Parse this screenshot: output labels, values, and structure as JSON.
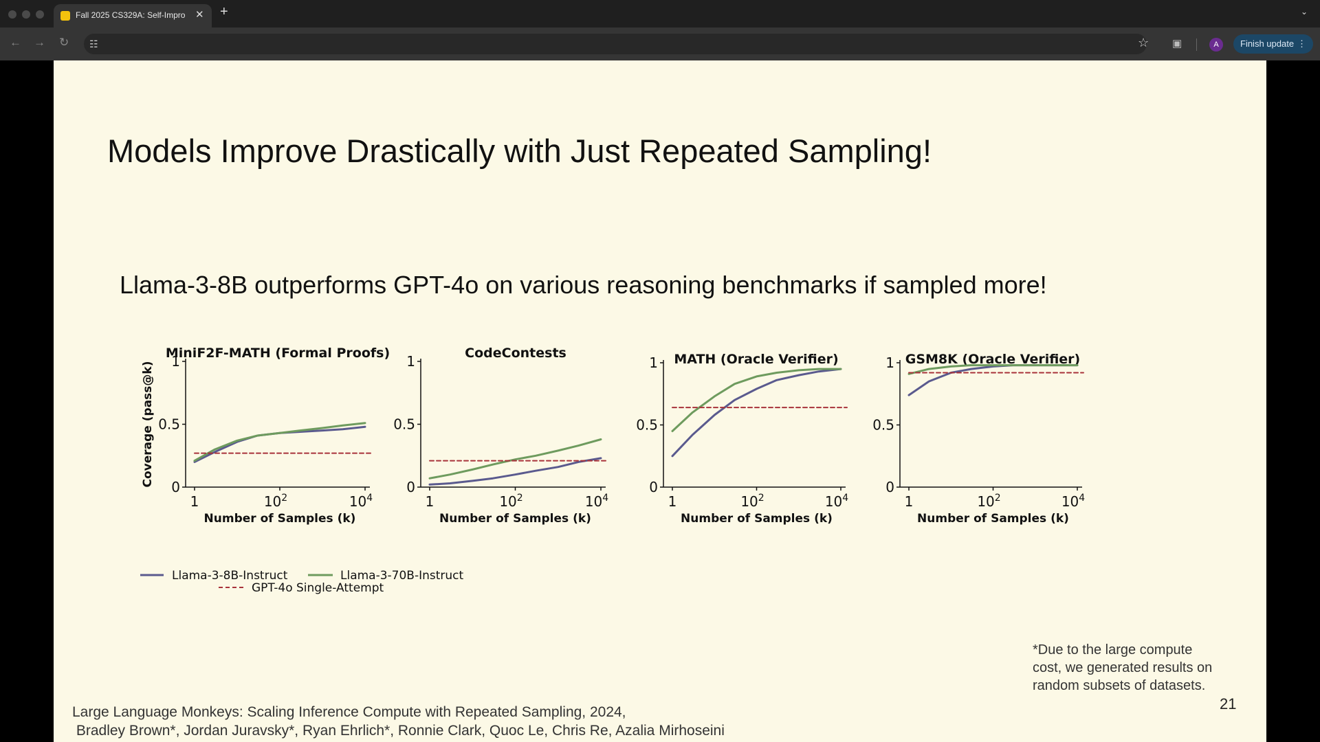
{
  "browser": {
    "tab_title": "Fall 2025 CS329A: Self-Impro",
    "tab_close": "✕",
    "new_tab": "+",
    "tab_menu": "⌄",
    "avatar_letter": "A",
    "update_label": "Finish update",
    "update_dots": "⋮",
    "icons": [
      "back-icon",
      "forward-icon",
      "reload-icon",
      "tune-icon",
      "star-icon",
      "extensions-icon"
    ]
  },
  "slide": {
    "title": "Models Improve Drastically with Just Repeated Sampling!",
    "subtitle": "Llama-3-8B outperforms GPT-4o on various reasoning benchmarks if sampled more!",
    "footnote": [
      "*Due to the large compute",
      "cost, we generated results on",
      "random subsets of datasets."
    ],
    "page_number": "21",
    "citation": [
      "Large Language Monkeys: Scaling Inference Compute with Repeated Sampling, 2024,",
      " Bradley Brown*, Jordan Juravsky*, Ryan Ehrlich*, Ronnie Clark, Quoc Le, Chris Re, Azalia Mirhoseini"
    ]
  },
  "legend": {
    "items": [
      {
        "label": "Llama-3-8B-Instruct",
        "color": "#5a5a8e",
        "style": "solid"
      },
      {
        "label": "Llama-3-70B-Instruct",
        "color": "#6e9b5e",
        "style": "solid"
      },
      {
        "label": "GPT-4o Single-Attempt",
        "color": "#a8323a",
        "style": "dashed"
      }
    ]
  },
  "chart_data": [
    {
      "type": "line",
      "title": "MiniF2F-MATH (Formal Proofs)",
      "xlabel": "Number of Samples (k)",
      "ylabel": "Coverage (pass@k)",
      "xscale": "log10",
      "x_ticks": [
        1,
        100,
        10000
      ],
      "y_ticks": [
        "0",
        "0.5",
        "1"
      ],
      "ylim": [
        0,
        1
      ],
      "series": [
        {
          "name": "Llama-3-8B-Instruct",
          "x": [
            1,
            3,
            10,
            30,
            100,
            300,
            1000,
            3000,
            10000
          ],
          "y": [
            0.2,
            0.28,
            0.36,
            0.41,
            0.43,
            0.44,
            0.45,
            0.46,
            0.48
          ]
        },
        {
          "name": "Llama-3-70B-Instruct",
          "x": [
            1,
            3,
            10,
            30,
            100,
            300,
            1000,
            3000,
            10000
          ],
          "y": [
            0.21,
            0.3,
            0.37,
            0.41,
            0.43,
            0.45,
            0.47,
            0.49,
            0.51
          ]
        },
        {
          "name": "GPT-4o Single-Attempt",
          "x": [
            1,
            10000
          ],
          "y": [
            0.27,
            0.27
          ]
        }
      ]
    },
    {
      "type": "line",
      "title": "CodeContests",
      "xlabel": "Number of Samples (k)",
      "ylabel": "",
      "xscale": "log10",
      "x_ticks": [
        1,
        100,
        10000
      ],
      "y_ticks": [
        "0",
        "0.5",
        "1"
      ],
      "ylim": [
        0,
        1
      ],
      "series": [
        {
          "name": "Llama-3-8B-Instruct",
          "x": [
            1,
            3,
            10,
            30,
            100,
            300,
            1000,
            3000,
            10000
          ],
          "y": [
            0.02,
            0.03,
            0.05,
            0.07,
            0.1,
            0.13,
            0.16,
            0.2,
            0.23
          ]
        },
        {
          "name": "Llama-3-70B-Instruct",
          "x": [
            1,
            3,
            10,
            30,
            100,
            300,
            1000,
            3000,
            10000
          ],
          "y": [
            0.07,
            0.1,
            0.14,
            0.18,
            0.22,
            0.25,
            0.29,
            0.33,
            0.38
          ]
        },
        {
          "name": "GPT-4o Single-Attempt",
          "x": [
            1,
            10000
          ],
          "y": [
            0.21,
            0.21
          ]
        }
      ]
    },
    {
      "type": "line",
      "title": "MATH (Oracle Verifier)",
      "xlabel": "Number of Samples (k)",
      "ylabel": "",
      "xscale": "log10",
      "x_ticks": [
        1,
        100,
        10000
      ],
      "y_ticks": [
        "0",
        "0.5",
        "1"
      ],
      "ylim": [
        0,
        1
      ],
      "series": [
        {
          "name": "Llama-3-8B-Instruct",
          "x": [
            1,
            3,
            10,
            30,
            100,
            300,
            1000,
            3000,
            10000
          ],
          "y": [
            0.25,
            0.42,
            0.58,
            0.7,
            0.79,
            0.86,
            0.9,
            0.93,
            0.95
          ]
        },
        {
          "name": "Llama-3-70B-Instruct",
          "x": [
            1,
            3,
            10,
            30,
            100,
            300,
            1000,
            3000,
            10000
          ],
          "y": [
            0.45,
            0.6,
            0.73,
            0.83,
            0.89,
            0.92,
            0.94,
            0.95,
            0.95
          ]
        },
        {
          "name": "GPT-4o Single-Attempt",
          "x": [
            1,
            10000
          ],
          "y": [
            0.64,
            0.64
          ]
        }
      ]
    },
    {
      "type": "line",
      "title": "GSM8K (Oracle Verifier)",
      "xlabel": "Number of Samples (k)",
      "ylabel": "",
      "xscale": "log10",
      "x_ticks": [
        1,
        100,
        10000
      ],
      "y_ticks": [
        "0",
        "0.5",
        "1"
      ],
      "ylim": [
        0,
        1
      ],
      "series": [
        {
          "name": "Llama-3-8B-Instruct",
          "x": [
            1,
            3,
            10,
            30,
            100,
            300,
            1000,
            3000,
            10000
          ],
          "y": [
            0.74,
            0.85,
            0.92,
            0.95,
            0.97,
            0.98,
            0.98,
            0.98,
            0.98
          ]
        },
        {
          "name": "Llama-3-70B-Instruct",
          "x": [
            1,
            3,
            10,
            30,
            100,
            300,
            1000,
            3000,
            10000
          ],
          "y": [
            0.91,
            0.95,
            0.97,
            0.98,
            0.98,
            0.98,
            0.98,
            0.98,
            0.98
          ]
        },
        {
          "name": "GPT-4o Single-Attempt",
          "x": [
            1,
            10000
          ],
          "y": [
            0.92,
            0.92
          ]
        }
      ]
    }
  ]
}
